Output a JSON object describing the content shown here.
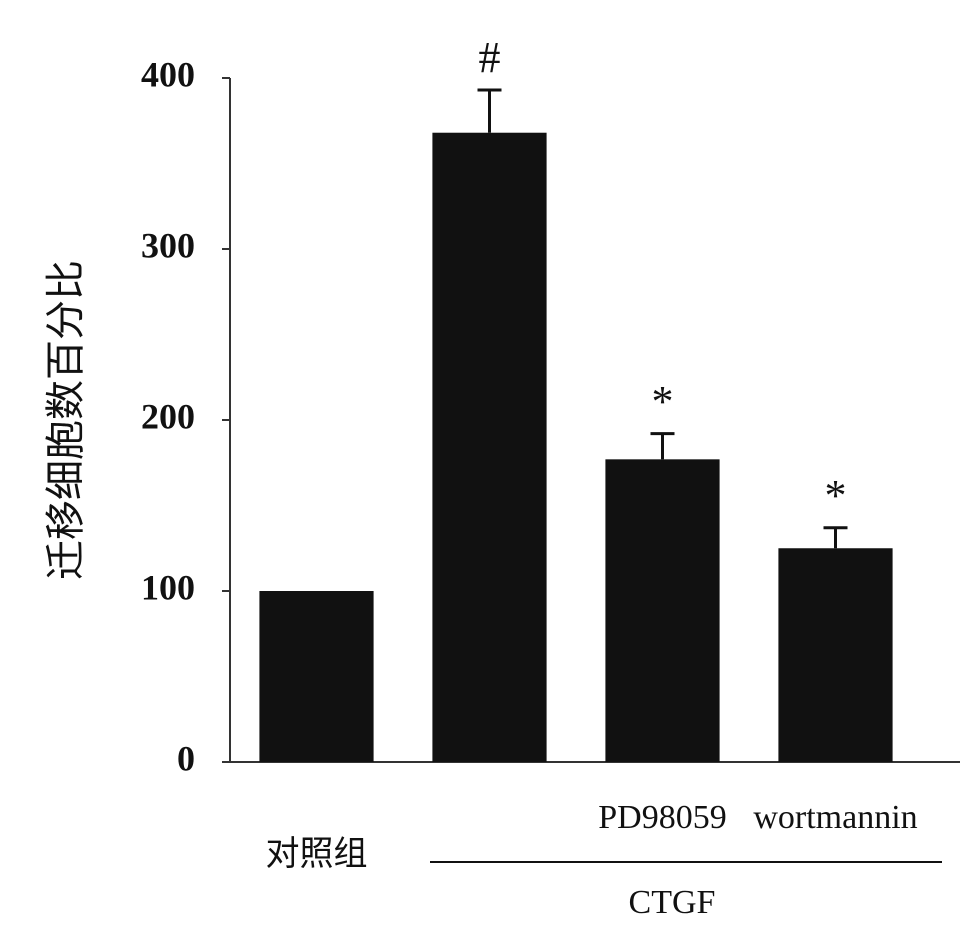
{
  "chart_data": {
    "type": "bar",
    "y_label": "迁移细胞数百分比",
    "categories": [
      "对照组",
      null,
      "PD98059",
      "wortmannin"
    ],
    "values": [
      100,
      368,
      177,
      125
    ],
    "errors": [
      null,
      25,
      15,
      12
    ],
    "annotations": [
      null,
      "#",
      "*",
      "*"
    ],
    "group_label": "CTGF",
    "color": "#111111",
    "ylim": [
      0,
      400
    ],
    "yticks": [
      0,
      100,
      200,
      300,
      400
    ]
  }
}
